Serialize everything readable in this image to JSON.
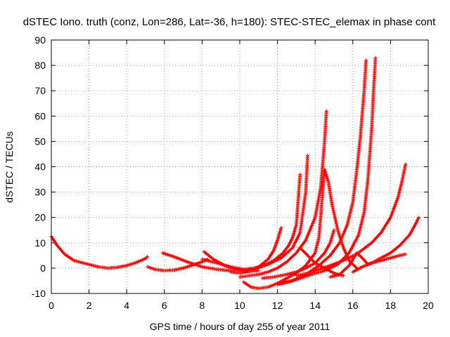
{
  "chart_data": {
    "type": "scatter",
    "title": "dSTEC Iono. truth (conz, Lon=286, Lat=-36, h=180): STEC-STEC_elemax in phase cont",
    "xlabel": "GPS time / hours of day 255 of year 2011",
    "ylabel": "dSTEC  / TECUs",
    "xlim": [
      0,
      20
    ],
    "ylim": [
      -10,
      90
    ],
    "xticks": [
      0,
      2,
      4,
      6,
      8,
      10,
      12,
      14,
      16,
      18,
      20
    ],
    "yticks": [
      -10,
      0,
      10,
      20,
      30,
      40,
      50,
      60,
      70,
      80,
      90
    ],
    "grid": true,
    "legend": "none",
    "marker": "+",
    "color": "#ff0000",
    "series": [
      {
        "x": [
          0.0,
          0.3,
          0.7,
          1.2,
          1.8,
          2.5,
          3.0,
          3.5,
          4.0,
          4.5,
          5.0,
          5.1
        ],
        "y": [
          12.5,
          9.0,
          5.5,
          3.0,
          1.8,
          0.5,
          0.0,
          0.3,
          1.0,
          2.2,
          3.8,
          4.5
        ]
      },
      {
        "x": [
          5.1,
          5.5,
          6.0,
          6.5,
          7.0,
          7.5,
          8.0,
          8.3
        ],
        "y": [
          0.5,
          -0.5,
          -1.0,
          -0.8,
          0.0,
          1.2,
          2.5,
          3.5
        ]
      },
      {
        "x": [
          5.9,
          6.5,
          7.2,
          8.0,
          8.8,
          9.5,
          10.0,
          10.5,
          11.0
        ],
        "y": [
          6.0,
          4.5,
          2.5,
          0.5,
          -0.5,
          -1.0,
          -1.2,
          -1.3,
          -1.0
        ]
      },
      {
        "x": [
          8.1,
          8.6,
          9.2,
          9.8,
          10.3,
          10.8,
          11.3,
          11.8,
          12.3,
          12.6,
          12.8,
          13.0,
          13.2
        ],
        "y": [
          6.5,
          3.5,
          1.0,
          -0.5,
          -1.0,
          -0.3,
          1.0,
          3.0,
          6.0,
          9.0,
          12.0,
          17.0,
          37.0
        ]
      },
      {
        "x": [
          8.0,
          8.8,
          9.5,
          10.2,
          10.8,
          11.5,
          12.2,
          12.8,
          13.2,
          13.5,
          13.6
        ],
        "y": [
          3.5,
          2.0,
          0.5,
          -0.5,
          0.0,
          1.5,
          4.0,
          8.0,
          14.0,
          30.0,
          44.5
        ]
      },
      {
        "x": [
          9.5,
          10.0,
          10.5,
          11.0,
          11.5,
          11.8,
          12.0,
          12.2
        ],
        "y": [
          -1.5,
          -2.0,
          -1.2,
          0.5,
          3.5,
          7.0,
          11.0,
          16.0
        ]
      },
      {
        "x": [
          10.0,
          10.5,
          11.0,
          11.5,
          12.0,
          12.5,
          13.0,
          13.5,
          14.0,
          14.3,
          14.5,
          14.6
        ],
        "y": [
          -3.5,
          -3.0,
          -2.5,
          -1.5,
          0.0,
          2.5,
          6.0,
          11.0,
          20.0,
          32.0,
          50.0,
          62.0
        ]
      },
      {
        "x": [
          10.2,
          10.6,
          11.0,
          11.5,
          12.0,
          12.5,
          13.0,
          13.5,
          14.0,
          14.2,
          14.4,
          14.5,
          14.7,
          14.9,
          15.2,
          15.5,
          15.8,
          16.2
        ],
        "y": [
          -5.5,
          -7.5,
          -8.0,
          -7.5,
          -6.0,
          -4.0,
          -2.0,
          1.0,
          6.0,
          12.0,
          30.0,
          39.0,
          34.0,
          25.0,
          15.0,
          8.0,
          3.0,
          0.0
        ]
      },
      {
        "x": [
          11.2,
          11.8,
          12.5,
          13.0,
          13.5,
          14.0,
          14.5,
          14.8,
          15.0
        ],
        "y": [
          -4.0,
          -3.5,
          -2.5,
          -1.5,
          0.0,
          2.0,
          6.0,
          10.0,
          15.0
        ]
      },
      {
        "x": [
          12.0,
          12.8,
          13.5,
          14.2,
          14.8,
          15.3,
          15.7,
          16.0,
          16.2,
          16.4,
          16.6,
          16.7
        ],
        "y": [
          -6.5,
          -5.0,
          -2.5,
          1.0,
          5.0,
          10.0,
          17.0,
          26.0,
          38.0,
          52.0,
          70.0,
          82.0
        ]
      },
      {
        "x": [
          12.2,
          13.0,
          13.8,
          14.5,
          15.2,
          15.8,
          16.3,
          16.6,
          16.8,
          17.0,
          17.1,
          17.2
        ],
        "y": [
          -6.0,
          -4.5,
          -2.5,
          -1.0,
          1.5,
          6.0,
          13.0,
          22.0,
          35.0,
          55.0,
          70.0,
          83.0
        ]
      },
      {
        "x": [
          13.2,
          13.6,
          14.0,
          14.5,
          15.0,
          15.5
        ],
        "y": [
          8.0,
          5.0,
          2.0,
          0.0,
          -2.0,
          -3.0
        ]
      },
      {
        "x": [
          13.0,
          13.6,
          14.2,
          14.8,
          15.5,
          16.2,
          17.0,
          17.5,
          18.0,
          18.4,
          18.6,
          18.8
        ],
        "y": [
          -3.0,
          -2.0,
          -0.5,
          1.0,
          3.0,
          5.5,
          10.0,
          14.0,
          20.0,
          28.0,
          34.0,
          41.0
        ]
      },
      {
        "x": [
          14.8,
          15.3,
          15.8,
          16.2,
          16.5,
          16.8,
          17.0,
          17.5,
          18.0,
          18.5,
          18.8
        ],
        "y": [
          -3.5,
          -2.5,
          1.0,
          6.0,
          4.0,
          1.5,
          2.0,
          3.0,
          4.0,
          5.0,
          5.5
        ]
      },
      {
        "x": [
          16.0,
          16.5,
          17.0,
          17.5,
          18.0,
          18.5,
          19.0,
          19.3,
          19.5
        ],
        "y": [
          -1.5,
          0.5,
          2.0,
          4.0,
          6.0,
          9.0,
          13.0,
          17.0,
          20.0
        ]
      }
    ]
  }
}
